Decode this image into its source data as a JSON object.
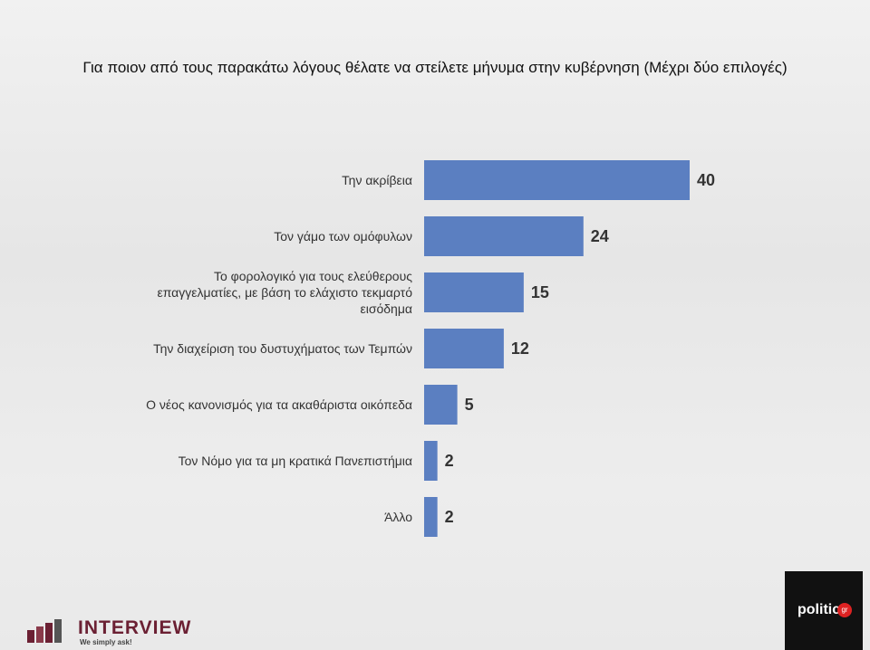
{
  "chart_data": {
    "type": "bar",
    "orientation": "horizontal",
    "title": "Για ποιον από τους παρακάτω λόγους θέλατε να στείλετε μήνυμα στην κυβέρνηση (Μέχρι δύο επιλογές)",
    "categories": [
      "Την ακρίβεια",
      "Τον γάμο των ομόφυλων",
      "Το φορολογικό για τους ελεύθερους επαγγελματίες, με βάση το ελάχιστο τεκμαρτό εισόδημα",
      "Την διαχείριση του δυστυχήματος των Τεμπών",
      "Ο νέος κανονισμός για τα ακαθάριστα οικόπεδα",
      "Τον Νόμο για τα μη κρατικά Πανεπιστήμια",
      "Άλλο"
    ],
    "values": [
      40,
      24,
      15,
      12,
      5,
      2,
      2
    ],
    "color": "#5b7fc1"
  },
  "logos": {
    "left": "INTERVIEW",
    "left_tagline": "We simply ask!",
    "right": "politic",
    "right_badge": "gr"
  }
}
